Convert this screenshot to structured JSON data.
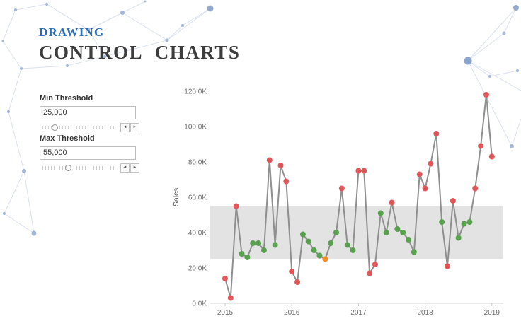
{
  "header": {
    "subtitle": "DRAWING",
    "title": "CONTROL  CHARTS"
  },
  "controls": {
    "min": {
      "label": "Min Threshold",
      "value": "25,000"
    },
    "max": {
      "label": "Max Threshold",
      "value": "55,000"
    }
  },
  "icons": {
    "slider_left": "◄",
    "slider_right": "►"
  },
  "chart_data": {
    "type": "line",
    "title": "",
    "ylabel": "Sales",
    "x_tick_labels": [
      "2015",
      "2016",
      "2017",
      "2018",
      "2019"
    ],
    "points_per_year": 12,
    "y_tick_labels": [
      "0.0K",
      "20.0K",
      "40.0K",
      "60.0K",
      "80.0K",
      "100.0K",
      "120.0K"
    ],
    "y_tick_values": [
      0,
      20,
      40,
      60,
      80,
      100,
      120
    ],
    "ylim": [
      0,
      125
    ],
    "y_unit": "K",
    "band": {
      "min": 25,
      "max": 55,
      "color": "#e3e3e3"
    },
    "values": [
      14,
      3,
      55,
      28,
      26,
      34,
      34,
      30,
      81,
      33,
      78,
      69,
      18,
      12,
      39,
      35,
      30,
      27,
      25,
      34,
      40,
      65,
      33,
      30,
      75,
      75,
      17,
      22,
      51,
      40,
      57,
      42,
      40,
      36,
      29,
      73,
      65,
      79,
      96,
      46,
      21,
      58,
      37,
      45,
      46,
      65,
      89,
      118,
      83
    ],
    "point_colors": [
      "red",
      "red",
      "red",
      "green",
      "green",
      "green",
      "green",
      "green",
      "red",
      "green",
      "red",
      "red",
      "red",
      "red",
      "green",
      "green",
      "green",
      "green",
      "orange",
      "green",
      "green",
      "red",
      "green",
      "green",
      "red",
      "red",
      "red",
      "red",
      "green",
      "green",
      "red",
      "green",
      "green",
      "green",
      "green",
      "red",
      "red",
      "red",
      "red",
      "green",
      "red",
      "red",
      "green",
      "green",
      "green",
      "red",
      "red",
      "red",
      "red"
    ],
    "palette": {
      "red": "#e15759",
      "green": "#59a14f",
      "orange": "#f28e2b",
      "line": "#8f8f8f"
    }
  }
}
